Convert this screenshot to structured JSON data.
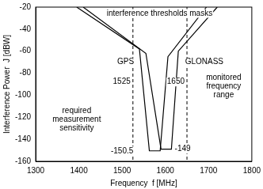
{
  "chart_data": {
    "type": "line",
    "title": "interference thresholds masks",
    "x_label": "Frequency  f [MHz]",
    "y_label": "Interference Power  J [dBW]",
    "series": [
      {
        "name": "GPS",
        "color": "#000000",
        "line_style": "solid",
        "x": [
          1395,
          1540,
          1563,
          1588,
          1606,
          1695
        ],
        "values": [
          -20,
          -58,
          -150.5,
          -150.5,
          -65,
          -20
        ]
      },
      {
        "name": "GLONASS",
        "color": "#000000",
        "line_style": "solid",
        "x": [
          1410,
          1555,
          1590,
          1614,
          1630,
          1720
        ],
        "values": [
          -20,
          -62,
          -149,
          -149,
          -60,
          -20
        ]
      }
    ],
    "reference_lines": [
      {
        "x": 1525,
        "line_style": "dashed",
        "label": "1525",
        "label_y": -88
      },
      {
        "x": 1650,
        "line_style": "dashed",
        "label": "1650",
        "label_y": -88
      }
    ],
    "annotations": [
      {
        "text": "GPS",
        "x": 1508,
        "y": -70
      },
      {
        "text": "GLONASS",
        "x": 1690,
        "y": -70
      },
      {
        "text": "required measurement sensitivity",
        "x": 1395,
        "y": -122
      },
      {
        "text": "monitored frequency range",
        "x": 1735,
        "y": -92
      },
      {
        "text": "-150.5",
        "x": 1500,
        "y": -150.5
      },
      {
        "text": "-149",
        "x": 1640,
        "y": -149
      }
    ],
    "xlim": [
      1300,
      1800
    ],
    "xticks": [
      1300,
      1400,
      1500,
      1600,
      1700,
      1800
    ],
    "ylim": [
      -160,
      -20
    ],
    "yticks": [
      -160,
      -140,
      -120,
      -100,
      -80,
      -60,
      -40,
      -20
    ],
    "grid": false
  }
}
